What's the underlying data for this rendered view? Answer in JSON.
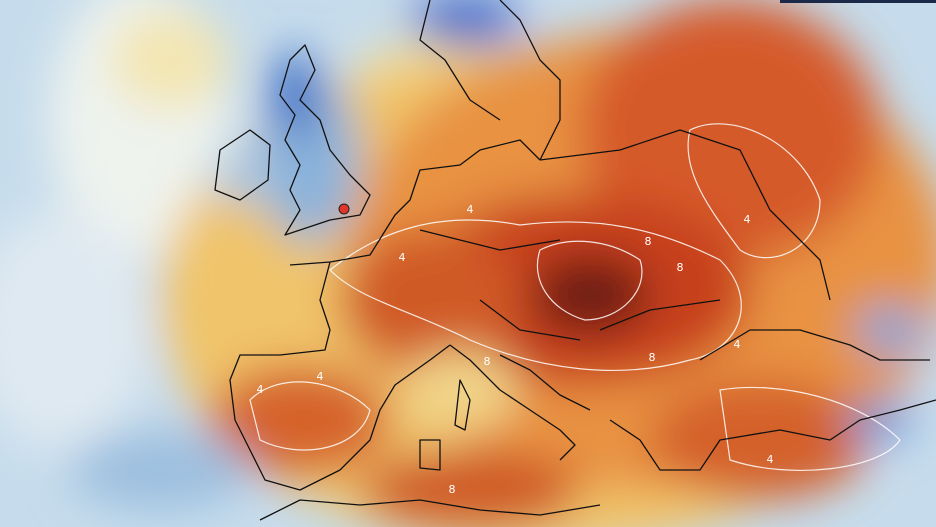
{
  "contour_labels": [
    4,
    8,
    8,
    4,
    4,
    8,
    8,
    4,
    4,
    8,
    4,
    4
  ]
}
